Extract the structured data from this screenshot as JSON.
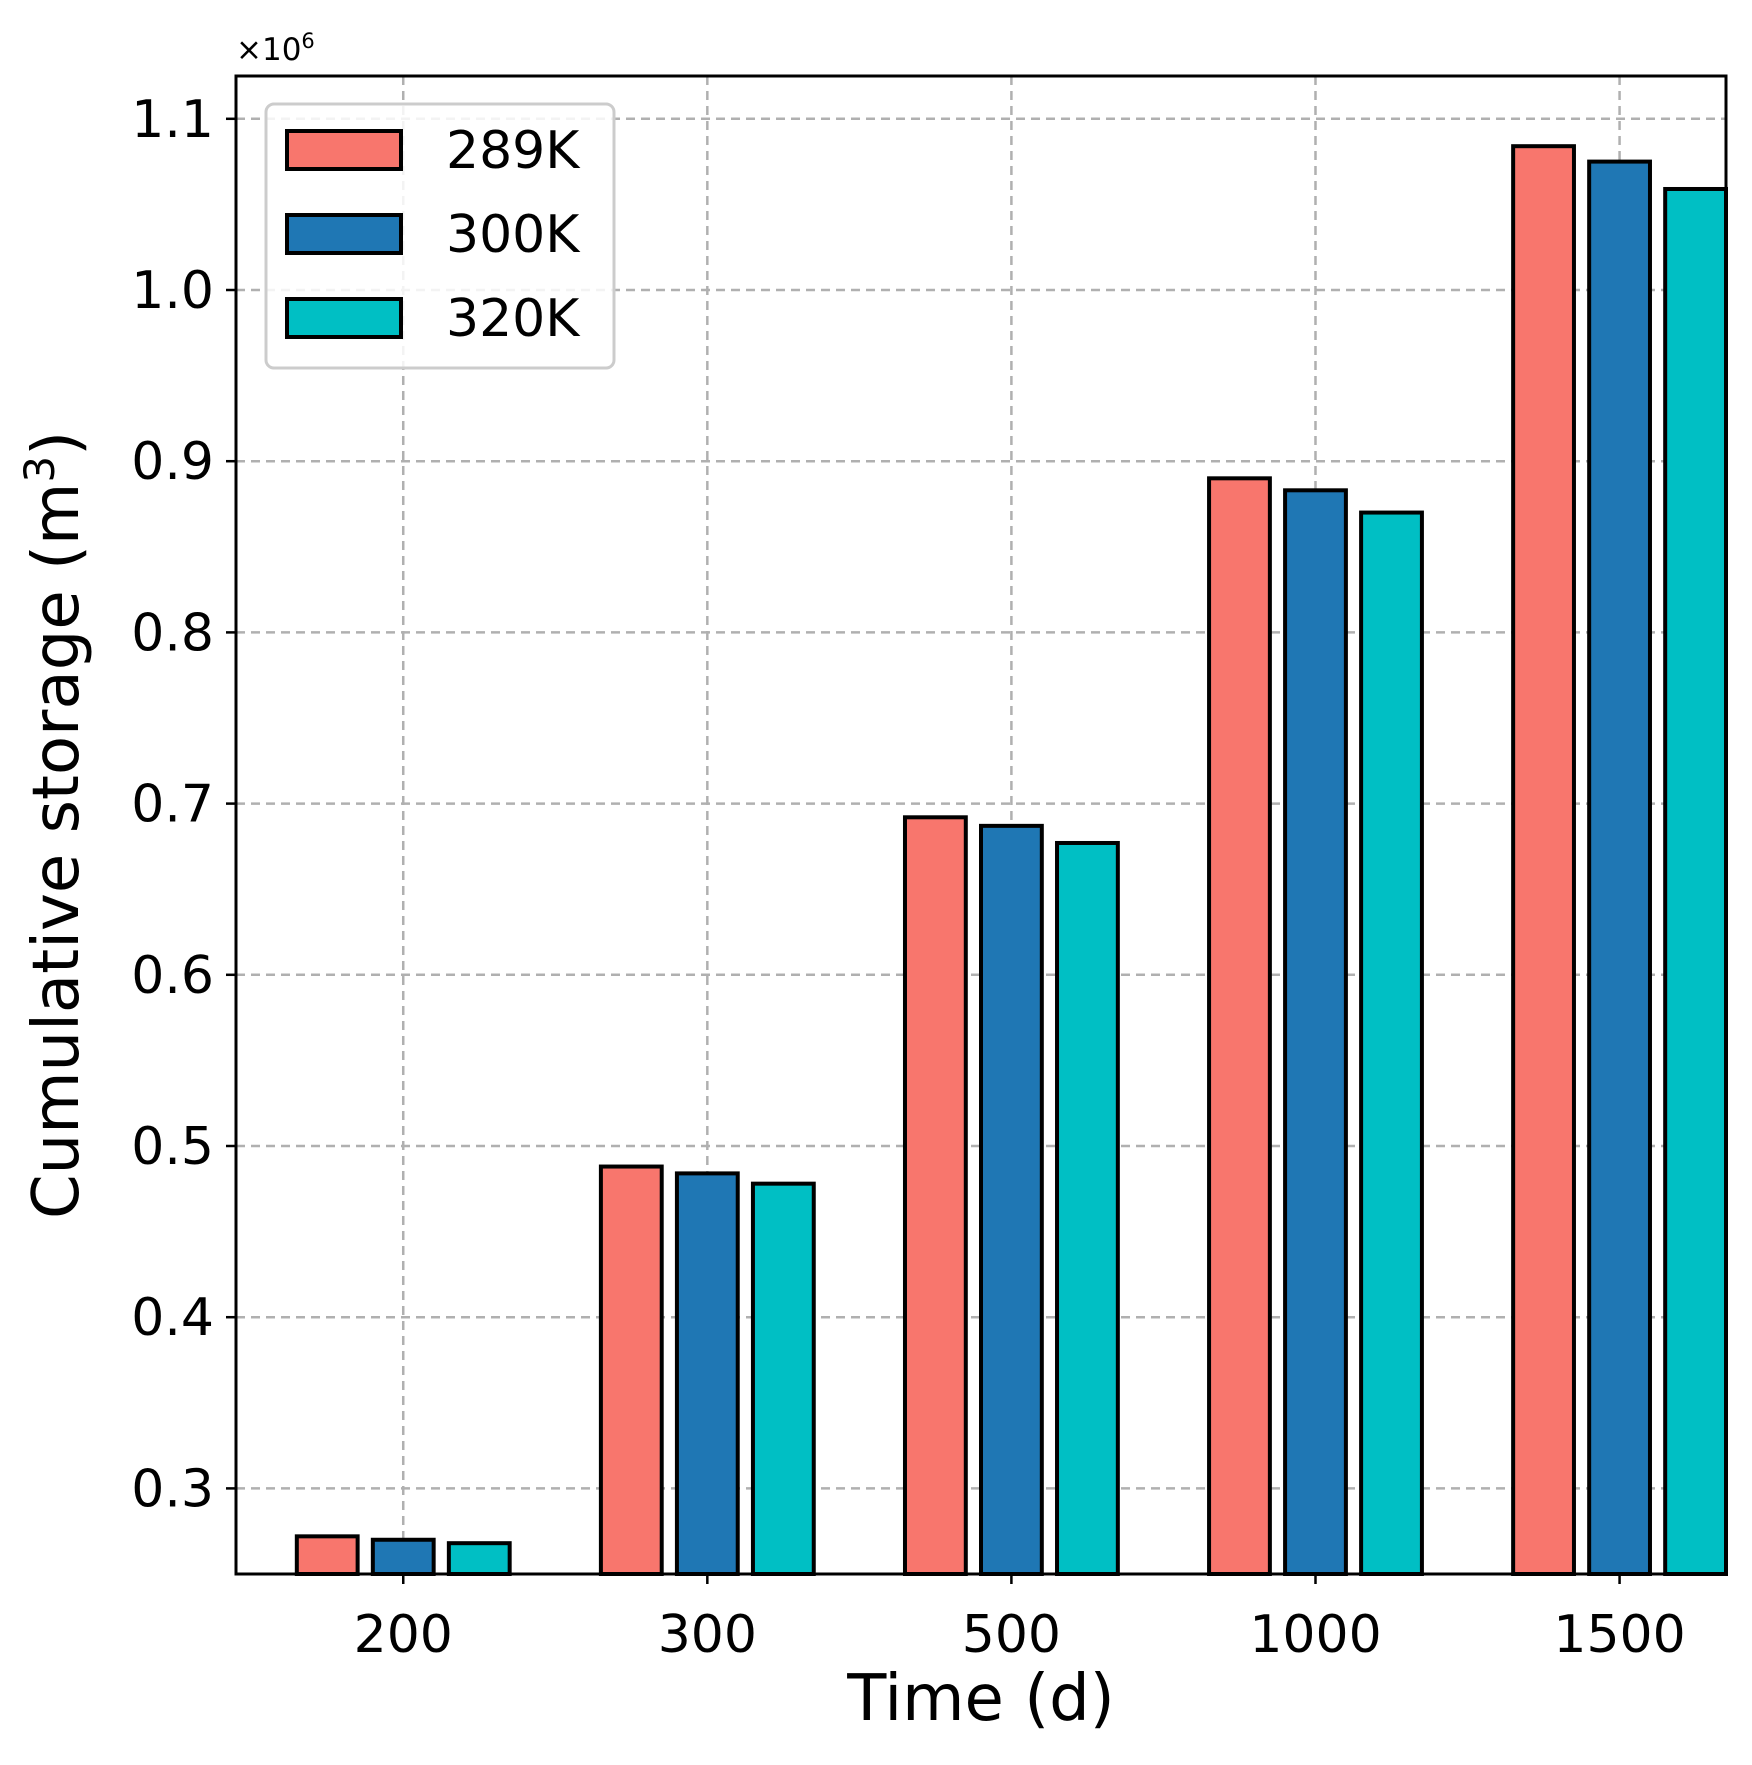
{
  "chart_data": {
    "type": "bar",
    "title": "",
    "xlabel": "Time (d)",
    "ylabel": "Cumulative storage (m",
    "ylabel_superscript": "3",
    "ylabel_close": ")",
    "offset_label": "×10",
    "offset_exponent": "6",
    "categories": [
      "200",
      "300",
      "500",
      "1000",
      "1500"
    ],
    "ylim": [
      0.25,
      1.125
    ],
    "yticks": [
      0.3,
      0.4,
      0.5,
      0.6,
      0.7,
      0.8,
      0.9,
      1.0,
      1.1
    ],
    "ytick_labels": [
      "0.3",
      "0.4",
      "0.5",
      "0.6",
      "0.7",
      "0.8",
      "0.9",
      "1.0",
      "1.1"
    ],
    "grid": true,
    "legend_position": "top-left",
    "series": [
      {
        "name": "289K",
        "color": "#f8766d",
        "values": [
          0.272,
          0.488,
          0.692,
          0.89,
          1.084
        ]
      },
      {
        "name": "300K",
        "color": "#1f77b4",
        "values": [
          0.27,
          0.484,
          0.687,
          0.883,
          1.075
        ]
      },
      {
        "name": "320K",
        "color": "#00bfc4",
        "values": [
          0.268,
          0.478,
          0.677,
          0.87,
          1.059
        ]
      }
    ]
  }
}
